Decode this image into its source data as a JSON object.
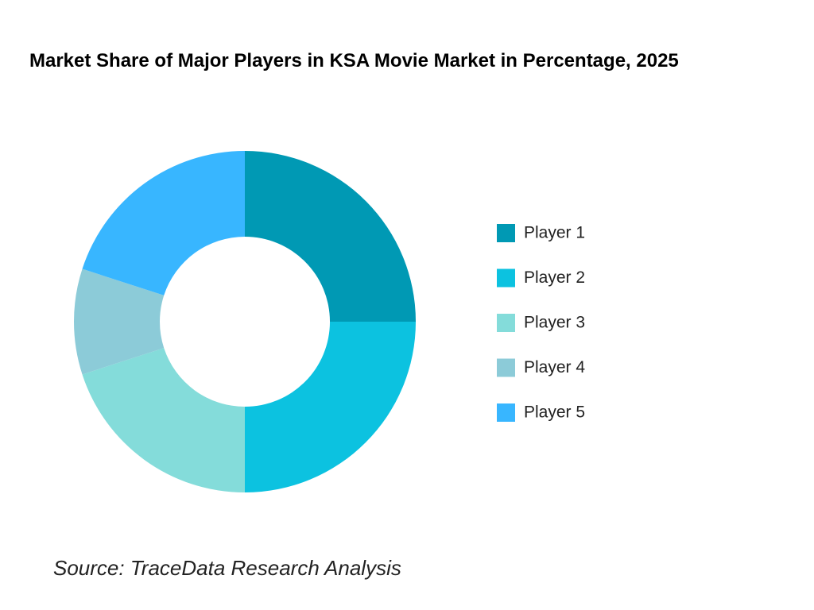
{
  "chart_data": {
    "type": "donut",
    "title": "Market Share of Major Players in KSA Movie Market in Percentage, 2025",
    "categories": [
      "Player 1",
      "Player 2",
      "Player 3",
      "Player 4",
      "Player 5"
    ],
    "values": [
      25,
      25,
      20,
      10,
      20
    ],
    "colors": [
      "#0099b4",
      "#0cc2e0",
      "#84dcda",
      "#8ccbd8",
      "#38b6ff"
    ],
    "legend": "right",
    "source": "Source: TraceData Research Analysis"
  }
}
